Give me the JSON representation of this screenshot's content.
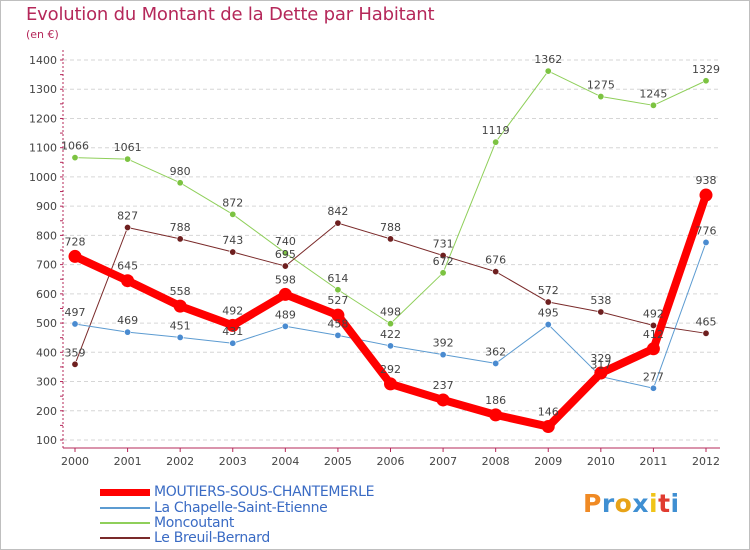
{
  "title": "Evolution du Montant de la Dette par Habitant",
  "subtitle": "(en €)",
  "logo": {
    "text": "Proxiti",
    "letter_colors": [
      "#f08a24",
      "#3f8fd2",
      "#e8a317",
      "#3f8fd2",
      "#f0c419",
      "#e03c31",
      "#3f8fd2"
    ]
  },
  "chart_data": {
    "type": "line",
    "title": "Evolution du Montant de la Dette par Habitant",
    "subtitle": "(en €)",
    "xlabel": "",
    "ylabel": "",
    "x": [
      "2000",
      "2001",
      "2002",
      "2003",
      "2004",
      "2005",
      "2006",
      "2007",
      "2008",
      "2009",
      "2010",
      "2011",
      "2012"
    ],
    "yticks": [
      100,
      200,
      300,
      400,
      500,
      600,
      700,
      800,
      900,
      1000,
      1100,
      1200,
      1300,
      1400
    ],
    "ylim": [
      100,
      1400
    ],
    "grid": "horizontal dashed",
    "legend_position": "bottom-left",
    "series": [
      {
        "name": "Moncoutant",
        "color": "#8fcf5a",
        "point_color": "#7cc341",
        "width": 1,
        "values": [
          1066,
          1061,
          980,
          872,
          740,
          614,
          498,
          672,
          1119,
          1362,
          1275,
          1245,
          1329
        ],
        "labels": [
          "1066",
          "1061",
          "980",
          "872",
          "740",
          "614",
          "498",
          "672",
          "1119",
          "1362",
          "1275",
          "1245",
          "1329"
        ]
      },
      {
        "name": "Le Breuil-Bernard",
        "color": "#7a2a2a",
        "point_color": "#6e1f1f",
        "width": 1,
        "values": [
          359,
          827,
          788,
          743,
          695,
          842,
          788,
          731,
          676,
          572,
          538,
          492,
          465
        ],
        "labels": [
          "359",
          "827",
          "788",
          "743",
          "695",
          "842",
          "788",
          "731",
          "676",
          "572",
          "538",
          "492",
          "465"
        ]
      },
      {
        "name": "La Chapelle-Saint-Etienne",
        "color": "#5c9bd1",
        "point_color": "#4a8bd0",
        "width": 1,
        "values": [
          497,
          469,
          451,
          431,
          489,
          458,
          422,
          392,
          362,
          495,
          317,
          277,
          776
        ],
        "labels": [
          "497",
          "469",
          "451",
          "431",
          "489",
          "458",
          "422",
          "392",
          "362",
          "495",
          "317",
          "277",
          "776"
        ]
      },
      {
        "name": "MOUTIERS-SOUS-CHANTEMERLE",
        "color": "#ff0000",
        "point_color": "#ff0000",
        "width": 8,
        "values": [
          728,
          645,
          558,
          492,
          598,
          527,
          292,
          237,
          186,
          146,
          329,
          412,
          938
        ],
        "labels": [
          "728",
          "645",
          "558",
          "492",
          "598",
          "527",
          "292",
          "237",
          "186",
          "146",
          "329",
          "412",
          "938"
        ]
      }
    ],
    "legend_order": [
      "MOUTIERS-SOUS-CHANTEMERLE",
      "La Chapelle-Saint-Etienne",
      "Moncoutant",
      "Le Breuil-Bernard"
    ]
  }
}
